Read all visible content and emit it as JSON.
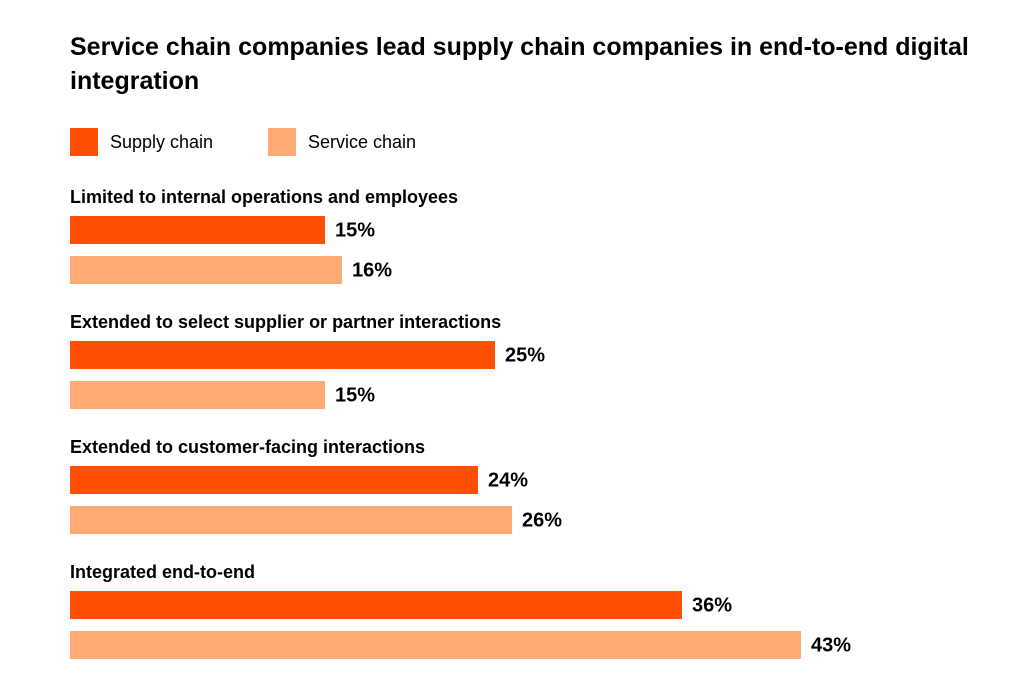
{
  "chart_data": {
    "type": "hbar",
    "title": "Service chain companies lead supply chain companies in end-to-end digital integration",
    "categories": [
      "Limited to internal operations and employees",
      "Extended to select supplier or partner interactions",
      "Extended to customer-facing interactions",
      "Integrated end-to-end"
    ],
    "series": [
      {
        "name": "Supply chain",
        "color": "#fe5000",
        "values": [
          15,
          25,
          24,
          36
        ],
        "value_labels": [
          "15%",
          "25%",
          "24%",
          "36%"
        ]
      },
      {
        "name": "Service chain",
        "color": "#ffaa72",
        "values": [
          16,
          15,
          26,
          43
        ],
        "value_labels": [
          "16%",
          "15%",
          "26%",
          "43%"
        ]
      }
    ]
  }
}
